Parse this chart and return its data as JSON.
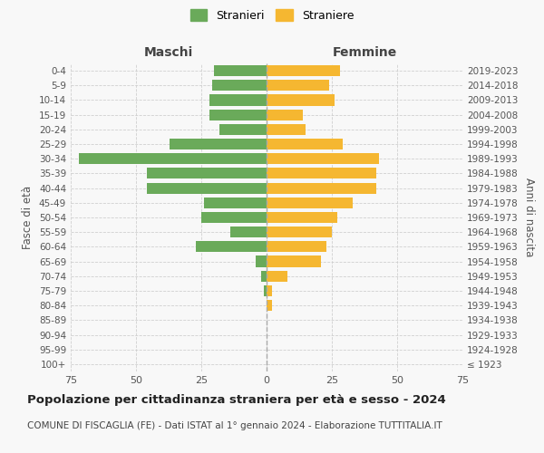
{
  "age_groups": [
    "100+",
    "95-99",
    "90-94",
    "85-89",
    "80-84",
    "75-79",
    "70-74",
    "65-69",
    "60-64",
    "55-59",
    "50-54",
    "45-49",
    "40-44",
    "35-39",
    "30-34",
    "25-29",
    "20-24",
    "15-19",
    "10-14",
    "5-9",
    "0-4"
  ],
  "birth_years": [
    "≤ 1923",
    "1924-1928",
    "1929-1933",
    "1934-1938",
    "1939-1943",
    "1944-1948",
    "1949-1953",
    "1954-1958",
    "1959-1963",
    "1964-1968",
    "1969-1973",
    "1974-1978",
    "1979-1983",
    "1984-1988",
    "1989-1993",
    "1994-1998",
    "1999-2003",
    "2004-2008",
    "2009-2013",
    "2014-2018",
    "2019-2023"
  ],
  "males": [
    0,
    0,
    0,
    0,
    0,
    1,
    2,
    4,
    27,
    14,
    25,
    24,
    46,
    46,
    72,
    37,
    18,
    22,
    22,
    21,
    20
  ],
  "females": [
    0,
    0,
    0,
    0,
    2,
    2,
    8,
    21,
    23,
    25,
    27,
    33,
    42,
    42,
    43,
    29,
    15,
    14,
    26,
    24,
    28
  ],
  "male_color": "#6aaa5a",
  "female_color": "#f5b731",
  "background_color": "#f8f8f8",
  "grid_color": "#cccccc",
  "title": "Popolazione per cittadinanza straniera per età e sesso - 2024",
  "subtitle": "COMUNE DI FISCAGLIA (FE) - Dati ISTAT al 1° gennaio 2024 - Elaborazione TUTTITALIA.IT",
  "left_header": "Maschi",
  "right_header": "Femmine",
  "ylabel": "Fasce di età",
  "right_ylabel": "Anni di nascita",
  "legend_male": "Stranieri",
  "legend_female": "Straniere",
  "xlim": 75
}
